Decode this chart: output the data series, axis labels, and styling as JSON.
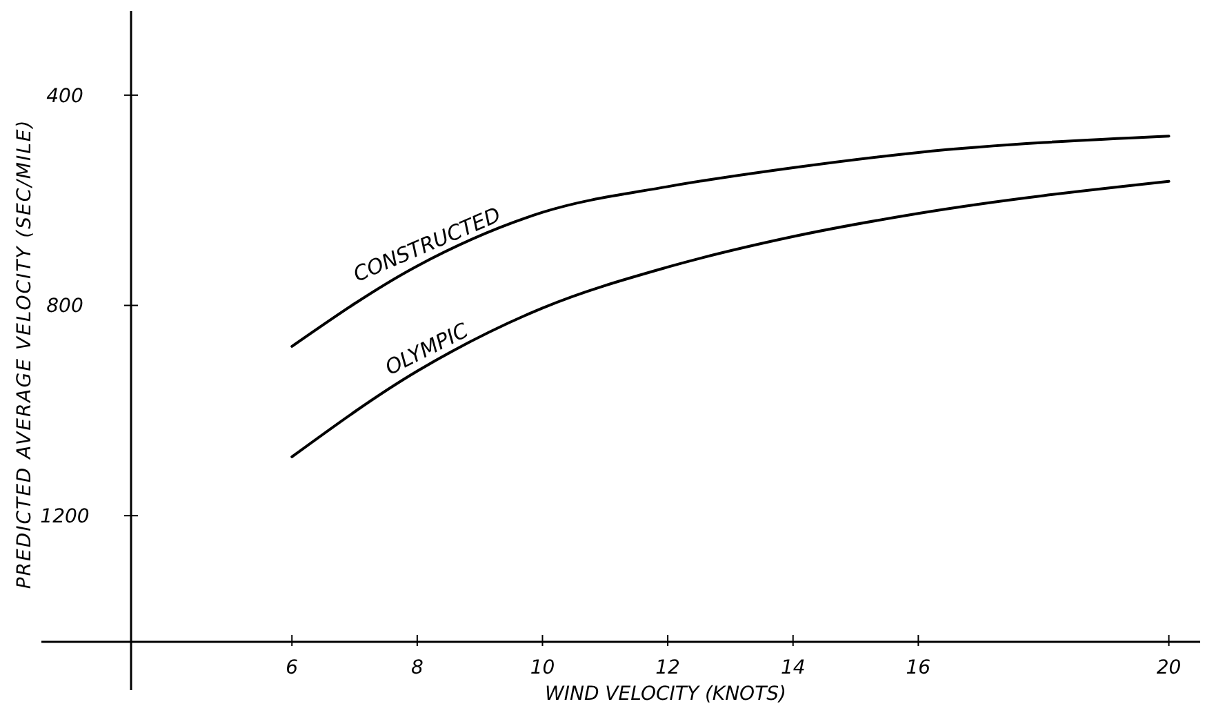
{
  "chart_data": {
    "type": "line",
    "xlabel": "WIND VELOCITY (KNOTS)",
    "ylabel": "PREDICTED AVERAGE VELOCITY (SEC/MILE)",
    "xlim": [
      2,
      20.5
    ],
    "xticks": [
      6,
      8,
      10,
      12,
      14,
      16,
      20
    ],
    "ylim": [
      1440,
      240
    ],
    "yticks": [
      400,
      800,
      1200
    ],
    "grid": false,
    "marker": "none",
    "line_style": "solid",
    "x": [
      6,
      8,
      10,
      12,
      14,
      16,
      20
    ],
    "series": [
      {
        "name": "CONSTRUCTED",
        "color": "#000000",
        "values": [
          878,
          725,
          623,
          574,
          538,
          509,
          478
        ]
      },
      {
        "name": "OLYMPIC",
        "color": "#000000",
        "values": [
          1088,
          925,
          805,
          727,
          669,
          625,
          564
        ]
      }
    ]
  }
}
